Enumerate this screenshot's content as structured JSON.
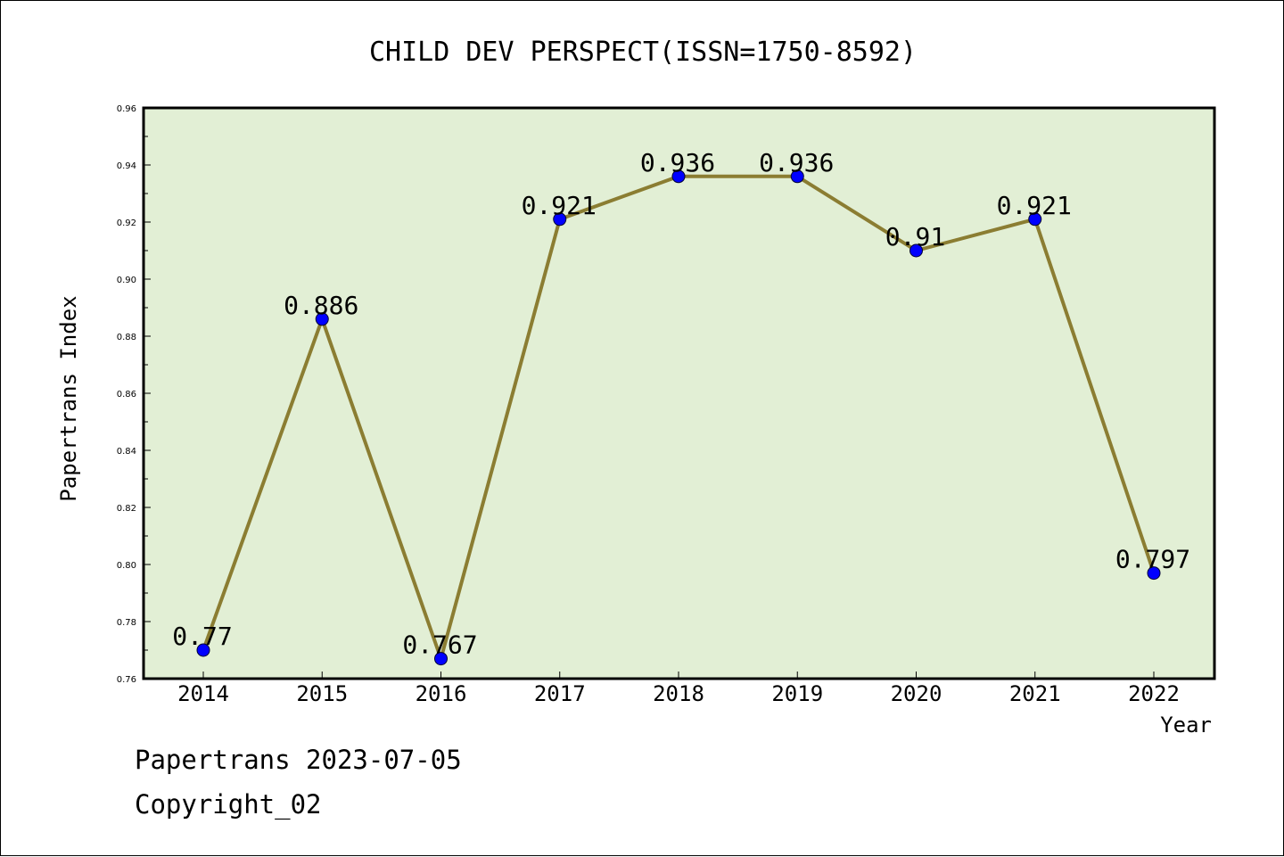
{
  "chart_data": {
    "type": "line",
    "title": "CHILD DEV PERSPECT(ISSN=1750-8592)",
    "xlabel": "Year",
    "ylabel": "Papertrans Index",
    "categories": [
      "2014",
      "2015",
      "2016",
      "2017",
      "2018",
      "2019",
      "2020",
      "2021",
      "2022"
    ],
    "series": [
      {
        "values": [
          0.77,
          0.886,
          0.767,
          0.921,
          0.936,
          0.936,
          0.91,
          0.921,
          0.797
        ],
        "labels": [
          "0.77",
          "0.886",
          "0.767",
          "0.921",
          "0.936",
          "0.936",
          "0.91",
          "0.921",
          "0.797"
        ],
        "line_color": "#8b7d32",
        "marker_color": "#0000ff"
      }
    ],
    "ylim": [
      0.76,
      0.96
    ],
    "yticks": [
      "0.76",
      "0.78",
      "0.80",
      "0.82",
      "0.84",
      "0.86",
      "0.88",
      "0.90",
      "0.92",
      "0.94",
      "0.96"
    ],
    "plot_background": "#e2efd5",
    "grid": false,
    "legend": "none"
  },
  "footer": {
    "line1": "Papertrans 2023-07-05",
    "line2": "Copyright_02"
  }
}
